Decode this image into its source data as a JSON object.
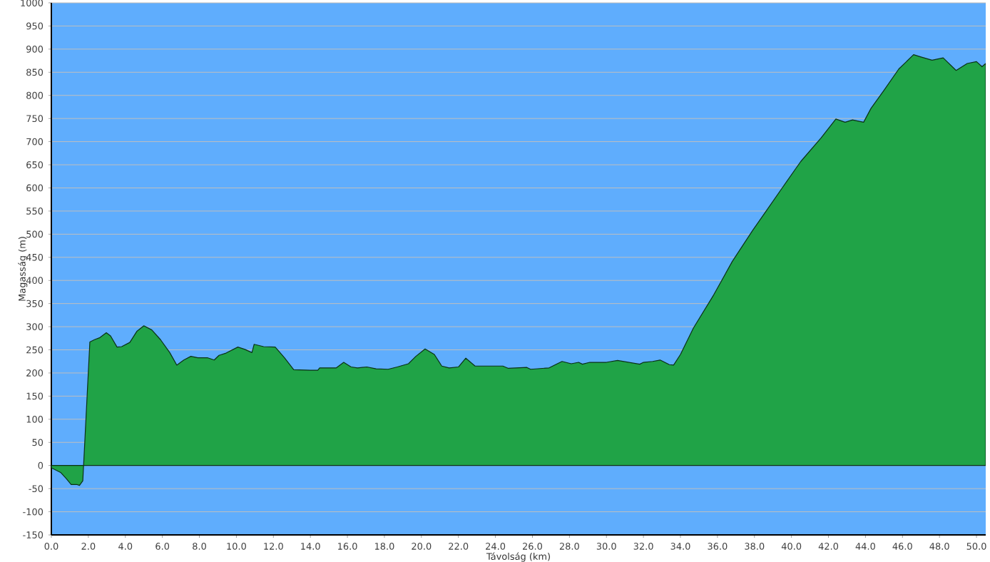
{
  "chart_data": {
    "type": "area",
    "xlabel": "Távolság  (km)",
    "ylabel": "Magasság (m)",
    "x": [
      0,
      0.25,
      0.5,
      0.8,
      1.07,
      1.37,
      1.52,
      1.7,
      2.08,
      2.33,
      2.6,
      2.97,
      3.2,
      3.55,
      3.8,
      4.24,
      4.62,
      5.0,
      5.43,
      5.9,
      6.4,
      6.78,
      7.16,
      7.54,
      7.92,
      8.43,
      8.8,
      9.06,
      9.44,
      10.08,
      10.46,
      10.84,
      10.96,
      11.47,
      12.1,
      12.6,
      13.1,
      14.0,
      14.4,
      14.5,
      15.4,
      15.8,
      16.2,
      16.55,
      17.05,
      17.55,
      18.2,
      18.7,
      19.3,
      19.7,
      20.2,
      20.7,
      21.1,
      21.5,
      22.0,
      22.4,
      22.9,
      23.6,
      24.4,
      24.7,
      25.7,
      25.9,
      26.9,
      27.6,
      28.1,
      28.5,
      28.7,
      29.1,
      30.0,
      30.6,
      31.2,
      31.8,
      32.0,
      32.5,
      32.9,
      33.4,
      33.63,
      34.0,
      34.7,
      35.8,
      36.8,
      37.9,
      38.7,
      39.5,
      40.5,
      41.6,
      42.4,
      42.9,
      43.3,
      43.9,
      44.3,
      45.0,
      45.8,
      46.6,
      47.0,
      47.6,
      48.2,
      48.9,
      49.5,
      50.0,
      50.3,
      50.5
    ],
    "series": [
      {
        "color": "#20a347",
        "values": [
          -5,
          -10,
          -15,
          -28,
          -41,
          -41,
          -43,
          -33,
          267,
          272,
          276,
          287,
          280,
          256,
          257,
          266,
          290,
          302,
          293,
          272,
          244,
          217,
          228,
          236,
          233,
          233,
          228,
          238,
          243,
          256,
          251,
          244,
          262,
          257,
          256,
          233,
          207,
          206,
          206,
          211,
          211,
          223,
          213,
          211,
          213,
          209,
          208,
          213,
          220,
          236,
          252,
          240,
          215,
          211,
          213,
          232,
          215,
          215,
          215,
          210,
          212,
          208,
          211,
          225,
          220,
          223,
          219,
          223,
          223,
          227,
          223,
          219,
          223,
          225,
          228,
          218,
          217,
          240,
          297,
          369,
          441,
          508,
          554,
          600,
          657,
          708,
          749,
          742,
          747,
          742,
          772,
          811,
          857,
          888,
          883,
          876,
          881,
          854,
          869,
          873,
          862,
          869
        ]
      }
    ],
    "xlim": [
      0,
      50.5
    ],
    "ylim": [
      -150,
      1000
    ],
    "xticks": [
      {
        "value": 0,
        "label": "0.0"
      },
      {
        "value": 2,
        "label": "2.0"
      },
      {
        "value": 4,
        "label": "4.0"
      },
      {
        "value": 6,
        "label": "6.0"
      },
      {
        "value": 8,
        "label": "8.0"
      },
      {
        "value": 10,
        "label": "10.0"
      },
      {
        "value": 12,
        "label": "12.0"
      },
      {
        "value": 14,
        "label": "14.0"
      },
      {
        "value": 16,
        "label": "16.0"
      },
      {
        "value": 18,
        "label": "18.0"
      },
      {
        "value": 20,
        "label": "20.0"
      },
      {
        "value": 22,
        "label": "22.0"
      },
      {
        "value": 24,
        "label": "24.0"
      },
      {
        "value": 26,
        "label": "26.0"
      },
      {
        "value": 28,
        "label": "28.0"
      },
      {
        "value": 30,
        "label": "30.0"
      },
      {
        "value": 32,
        "label": "32.0"
      },
      {
        "value": 34,
        "label": "34.0"
      },
      {
        "value": 36,
        "label": "36.0"
      },
      {
        "value": 38,
        "label": "38.0"
      },
      {
        "value": 40,
        "label": "40.0"
      },
      {
        "value": 42,
        "label": "42.0"
      },
      {
        "value": 44,
        "label": "44.0"
      },
      {
        "value": 46,
        "label": "46.0"
      },
      {
        "value": 48,
        "label": "48.0"
      },
      {
        "value": 50,
        "label": "50.0"
      }
    ],
    "yticks": [
      -150,
      -100,
      -50,
      0,
      50,
      100,
      150,
      200,
      250,
      300,
      350,
      400,
      450,
      500,
      550,
      600,
      650,
      700,
      750,
      800,
      850,
      900,
      950,
      1000
    ],
    "grid": "y"
  }
}
